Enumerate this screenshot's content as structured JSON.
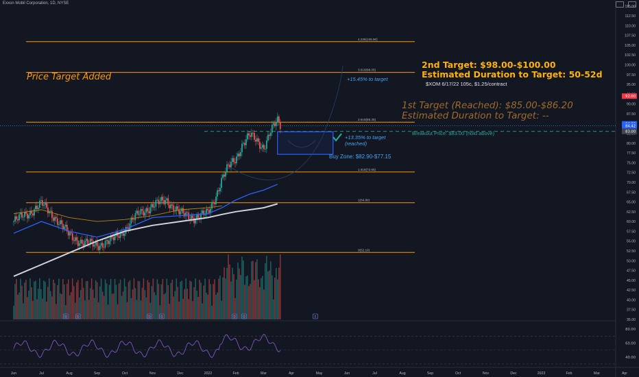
{
  "header": {
    "symbol_line": "Exxon Mobil Corporation, 1D, NYSE"
  },
  "colors": {
    "background": "#131722",
    "fib_line": "#ff9800",
    "price_target_text": "#ff9800",
    "second_target_text": "#ffb300",
    "first_target_text": "#9e6a29",
    "annotation_blue": "#42a5f5",
    "buy_zone_box": "#2962ff",
    "breakout_line": "#26a69a",
    "candle_up": "#26a69a",
    "candle_down": "#ef5350",
    "ma_fast": "#2962ff",
    "ma_slow": "#d1d4dc",
    "ma_mid": "#b8860b"
  },
  "annotations": {
    "price_target_added": "Price Target Added",
    "second_target": "2nd Target: $98.00-$100.00",
    "second_duration": "Estimated Duration to Target: 50-52d",
    "contract": "$XOM 6/17/22 105c, $1.25/contract",
    "first_target": "1st Target (Reached): $85.00-$86.20",
    "first_duration": "Estimated Duration to Target: --",
    "breakout": "Breakout Price: $83.00 (hold above)",
    "buy_zone": "Buy Zone: $82.90-$77.15",
    "pct_target": "+15.45% to target",
    "pct_reached_1": "+13.35% to target",
    "pct_reached_2": "(reached)"
  },
  "chart_data": {
    "type": "candlestick",
    "title": "Exxon Mobil Corporation, 1D, NYSE",
    "price_axis": {
      "range": [
        34,
        117
      ],
      "ticks": [
        35.0,
        37.5,
        40.0,
        42.5,
        45.0,
        47.5,
        50.0,
        52.5,
        55.0,
        57.5,
        60.0,
        62.5,
        65.0,
        67.5,
        70.0,
        72.5,
        75.0,
        77.5,
        80.0,
        82.5,
        85.0,
        87.5,
        90.0,
        92.5,
        95.0,
        97.5,
        100.0,
        102.5,
        105.0,
        107.5,
        110.0,
        112.5,
        115.0
      ],
      "price_tags": [
        {
          "text": "92.00",
          "value": 92.0,
          "color": "#f23645"
        },
        {
          "text": "84.92",
          "value": 84.92,
          "color": "#2962ff"
        },
        {
          "text": "84.42",
          "value": 84.42,
          "color": "#2962ff"
        },
        {
          "text": "83.00",
          "value": 83.0,
          "color": "#434651"
        }
      ]
    },
    "time_axis": {
      "labels": [
        "Jun",
        "Jul",
        "Aug",
        "Sep",
        "Oct",
        "Nov",
        "Dec",
        "2022",
        "Feb",
        "Mar",
        "Apr",
        "May",
        "Jun",
        "Jul",
        "Aug",
        "Sep",
        "Oct",
        "Nov",
        "Dec",
        "2023",
        "Feb",
        "Mar",
        "Apr"
      ]
    },
    "fib_levels": [
      {
        "label": "4.236(105.90)",
        "value": 105.9
      },
      {
        "label": "3.618(98.05)",
        "value": 98.05
      },
      {
        "label": "2.618(85.35)",
        "value": 85.35
      },
      {
        "label": "1.618(72.65)",
        "value": 72.65
      },
      {
        "label": "1(64.80)",
        "value": 64.8
      },
      {
        "label": "0(52.10)",
        "value": 52.1
      }
    ],
    "buy_zone": {
      "low": 77.15,
      "high": 82.9,
      "from_month": 9.5,
      "to_month": 11.5
    },
    "breakout_price": 83.0,
    "close": 84.42,
    "anchors": [
      [
        0,
        60
      ],
      [
        0.5,
        62
      ],
      [
        1,
        64.5
      ],
      [
        1.5,
        61
      ],
      [
        2,
        56.5
      ],
      [
        2.5,
        54.5
      ],
      [
        3,
        54
      ],
      [
        3.5,
        55
      ],
      [
        4,
        58
      ],
      [
        4.5,
        62
      ],
      [
        5,
        64
      ],
      [
        5.5,
        65.5
      ],
      [
        6,
        62
      ],
      [
        6.5,
        61
      ],
      [
        7,
        62
      ],
      [
        7.25,
        66
      ],
      [
        7.5,
        71
      ],
      [
        7.75,
        74
      ],
      [
        8,
        76
      ],
      [
        8.25,
        80
      ],
      [
        8.5,
        82
      ],
      [
        8.75,
        80.5
      ],
      [
        9,
        79
      ],
      [
        9.25,
        83
      ],
      [
        9.5,
        85.5
      ],
      [
        9.6,
        84.42
      ]
    ],
    "ma_fast": [
      [
        0,
        57
      ],
      [
        1,
        60
      ],
      [
        2,
        57.5
      ],
      [
        3,
        56
      ],
      [
        4,
        58
      ],
      [
        5,
        61
      ],
      [
        6,
        61.5
      ],
      [
        7,
        62
      ],
      [
        7.5,
        63.5
      ],
      [
        8,
        65.5
      ],
      [
        8.5,
        67
      ],
      [
        9,
        68
      ],
      [
        9.5,
        69.5
      ]
    ],
    "ma_slow": [
      [
        0,
        46
      ],
      [
        1,
        49
      ],
      [
        2,
        52
      ],
      [
        3,
        55
      ],
      [
        4,
        57.5
      ],
      [
        5,
        59
      ],
      [
        6,
        60
      ],
      [
        7,
        61
      ],
      [
        7.5,
        61.8
      ],
      [
        8,
        62.5
      ],
      [
        8.5,
        63
      ],
      [
        9,
        63.5
      ],
      [
        9.5,
        64.5
      ]
    ],
    "ma_mid": [
      [
        0,
        62
      ],
      [
        1,
        63
      ],
      [
        2,
        61
      ],
      [
        3,
        60
      ],
      [
        4,
        60.5
      ],
      [
        5,
        61.5
      ],
      [
        6,
        63
      ],
      [
        7,
        63.5
      ],
      [
        7.5,
        64
      ]
    ],
    "rsi": {
      "ticks": [
        40.0,
        60.0,
        80.0
      ],
      "range": [
        25,
        90
      ]
    },
    "volume_markers": [
      "D",
      "D",
      "D",
      "D",
      "D",
      "D",
      "E"
    ]
  }
}
